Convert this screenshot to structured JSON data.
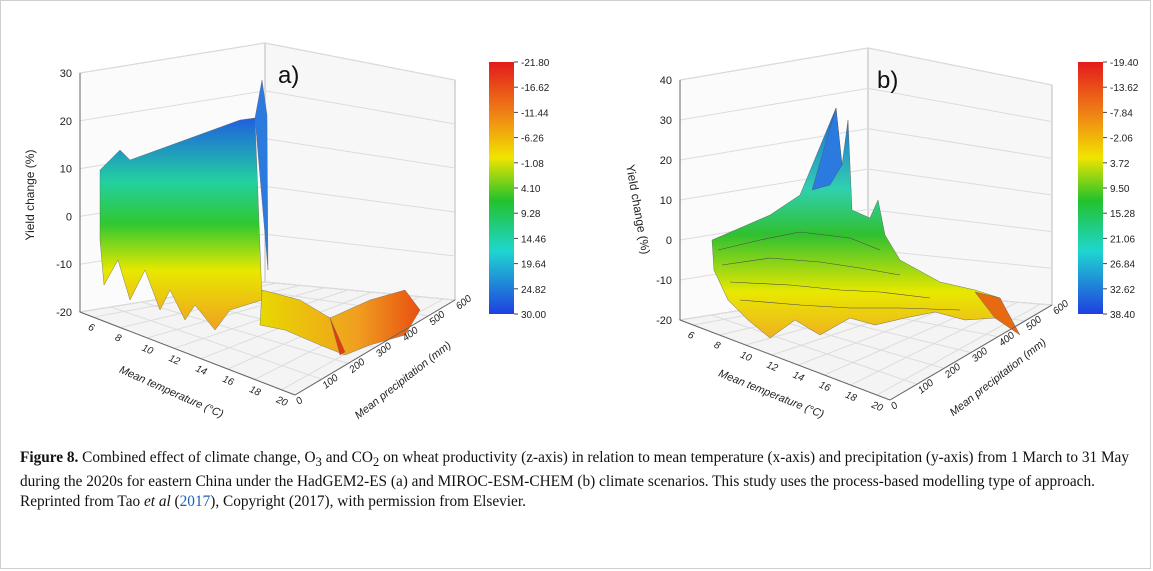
{
  "chart_data": [
    {
      "type": "surface3d",
      "panel_label": "a)",
      "zlabel": "Yield change (%)",
      "xlabel": "Mean temperature (°C)",
      "ylabel": "Mean precipitation (mm)",
      "zlim": [
        -20,
        30
      ],
      "z_ticks": [
        "30",
        "20",
        "10",
        "0",
        "-10",
        "-20"
      ],
      "x_ticks": [
        "6",
        "8",
        "10",
        "12",
        "14",
        "16",
        "18",
        "20"
      ],
      "y_ticks": [
        "0",
        "100",
        "200",
        "300",
        "400",
        "500",
        "600"
      ],
      "colorbar_ticks": [
        "-21.80",
        "-16.62",
        "-11.44",
        "-6.26",
        "-1.08",
        "4.10",
        "9.28",
        "14.46",
        "19.64",
        "24.82",
        "30.00"
      ],
      "grid": true,
      "colormap": [
        "#e31a1c",
        "#f0e400",
        "#22c22c",
        "#1fd6d0",
        "#1f3fe0"
      ]
    },
    {
      "type": "surface3d",
      "panel_label": "b)",
      "zlabel": "Yield change (%)",
      "xlabel": "Mean temperature (°C)",
      "ylabel": "Mean precipitation (mm)",
      "zlim": [
        -20,
        40
      ],
      "z_ticks": [
        "40",
        "30",
        "20",
        "10",
        "0",
        "-10",
        "-20"
      ],
      "x_ticks": [
        "6",
        "8",
        "10",
        "12",
        "14",
        "16",
        "18",
        "20"
      ],
      "y_ticks": [
        "0",
        "100",
        "200",
        "300",
        "400",
        "500",
        "600"
      ],
      "colorbar_ticks": [
        "-19.40",
        "-13.62",
        "-7.84",
        "-2.06",
        "3.72",
        "9.50",
        "15.28",
        "21.06",
        "26.84",
        "32.62",
        "38.40"
      ],
      "grid": true,
      "colormap": [
        "#e31a1c",
        "#f0e400",
        "#22c22c",
        "#1fd6d0",
        "#1f3fe0"
      ]
    }
  ],
  "caption": {
    "label": "Figure 8.",
    "text_1": " Combined effect of climate change, O",
    "sub_1": "3",
    "text_2": " and CO",
    "sub_2": "2",
    "text_3": " on wheat productivity (z-axis) in relation to mean temperature (x-axis) and precipitation (y-axis) from 1 March to 31 May during the 2020s for eastern China under the HadGEM2-ES (a) and MIROC-ESM-CHEM (b) climate scenarios. This study uses the process-based modelling type of approach. Reprinted from Tao ",
    "etal": "et al",
    "text_4": " (",
    "year_link": "2017",
    "text_5": "), Copyright (2017), with permission from Elsevier."
  }
}
